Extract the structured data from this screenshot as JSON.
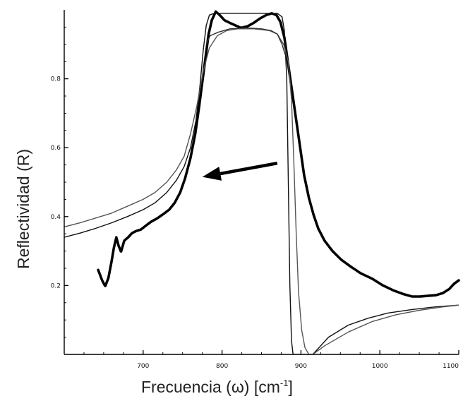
{
  "chart_data": {
    "type": "line",
    "xlabel": "Frecuencia (ω) [cm",
    "xlabel_sup": "-1",
    "xlabel_end": "]",
    "ylabel": "Reflectividad (R)",
    "xlim": [
      600,
      1100
    ],
    "ylim": [
      0,
      1
    ],
    "x_ticks": [
      700,
      800,
      900,
      1000,
      1100
    ],
    "x_tick_labels": [
      "700",
      "800",
      "900",
      "1000",
      "1100"
    ],
    "y_ticks": [
      0.2,
      0.4,
      0.6,
      0.8
    ],
    "y_tick_labels": [
      "0.2",
      "0.4",
      "0.6",
      "0.8"
    ],
    "grid": false,
    "legend": "none",
    "annotations": [
      {
        "type": "arrow",
        "from": {
          "x": 870,
          "y": 0.555
        },
        "to": {
          "x": 775,
          "y": 0.515
        }
      }
    ],
    "series": [
      {
        "style": "thick-dotted",
        "color": "#000000",
        "points": [
          [
            643,
            0.245
          ],
          [
            648,
            0.215
          ],
          [
            652,
            0.198
          ],
          [
            656,
            0.222
          ],
          [
            660,
            0.27
          ],
          [
            663,
            0.31
          ],
          [
            666,
            0.34
          ],
          [
            669,
            0.315
          ],
          [
            672,
            0.298
          ],
          [
            676,
            0.33
          ],
          [
            681,
            0.34
          ],
          [
            686,
            0.352
          ],
          [
            691,
            0.358
          ],
          [
            697,
            0.362
          ],
          [
            703,
            0.373
          ],
          [
            710,
            0.385
          ],
          [
            718,
            0.395
          ],
          [
            726,
            0.408
          ],
          [
            733,
            0.42
          ],
          [
            740,
            0.44
          ],
          [
            747,
            0.47
          ],
          [
            753,
            0.51
          ],
          [
            760,
            0.57
          ],
          [
            766,
            0.64
          ],
          [
            771,
            0.72
          ],
          [
            775,
            0.79
          ],
          [
            779,
            0.86
          ],
          [
            783,
            0.93
          ],
          [
            787,
            0.97
          ],
          [
            792,
            0.995
          ],
          [
            797,
            0.985
          ],
          [
            803,
            0.97
          ],
          [
            810,
            0.962
          ],
          [
            817,
            0.955
          ],
          [
            824,
            0.948
          ],
          [
            832,
            0.952
          ],
          [
            840,
            0.962
          ],
          [
            848,
            0.975
          ],
          [
            856,
            0.985
          ],
          [
            863,
            0.99
          ],
          [
            869,
            0.985
          ],
          [
            874,
            0.965
          ],
          [
            879,
            0.92
          ],
          [
            884,
            0.84
          ],
          [
            889,
            0.76
          ],
          [
            894,
            0.68
          ],
          [
            899,
            0.6
          ],
          [
            904,
            0.52
          ],
          [
            910,
            0.455
          ],
          [
            916,
            0.405
          ],
          [
            922,
            0.365
          ],
          [
            930,
            0.33
          ],
          [
            940,
            0.3
          ],
          [
            951,
            0.275
          ],
          [
            963,
            0.255
          ],
          [
            976,
            0.235
          ],
          [
            990,
            0.22
          ],
          [
            1004,
            0.2
          ],
          [
            1018,
            0.185
          ],
          [
            1030,
            0.175
          ],
          [
            1041,
            0.168
          ],
          [
            1051,
            0.168
          ],
          [
            1061,
            0.17
          ],
          [
            1071,
            0.172
          ],
          [
            1080,
            0.178
          ],
          [
            1088,
            0.19
          ],
          [
            1094,
            0.205
          ],
          [
            1100,
            0.215
          ]
        ]
      },
      {
        "style": "solid",
        "color": "#111111",
        "points": [
          [
            600,
            0.34
          ],
          [
            620,
            0.352
          ],
          [
            640,
            0.366
          ],
          [
            660,
            0.382
          ],
          [
            680,
            0.4
          ],
          [
            700,
            0.42
          ],
          [
            715,
            0.44
          ],
          [
            730,
            0.47
          ],
          [
            742,
            0.505
          ],
          [
            752,
            0.545
          ],
          [
            760,
            0.6
          ],
          [
            767,
            0.68
          ],
          [
            772,
            0.78
          ],
          [
            776,
            0.88
          ],
          [
            780,
            0.955
          ],
          [
            784,
            0.985
          ],
          [
            790,
            0.99
          ],
          [
            800,
            0.99
          ],
          [
            820,
            0.99
          ],
          [
            840,
            0.99
          ],
          [
            860,
            0.99
          ],
          [
            870,
            0.99
          ],
          [
            876,
            0.98
          ],
          [
            879,
            0.94
          ],
          [
            882,
            0.8
          ],
          [
            884,
            0.5
          ],
          [
            886,
            0.2
          ],
          [
            888,
            0.04
          ],
          [
            890,
            0.0
          ],
          [
            905,
            0.0
          ],
          [
            915,
            0.0
          ],
          [
            935,
            0.05
          ],
          [
            960,
            0.085
          ],
          [
            985,
            0.105
          ],
          [
            1010,
            0.12
          ],
          [
            1040,
            0.13
          ],
          [
            1070,
            0.138
          ],
          [
            1100,
            0.143
          ]
        ]
      },
      {
        "style": "solid",
        "color": "#555555",
        "points": [
          [
            600,
            0.37
          ],
          [
            620,
            0.382
          ],
          [
            640,
            0.396
          ],
          [
            660,
            0.41
          ],
          [
            680,
            0.43
          ],
          [
            700,
            0.45
          ],
          [
            715,
            0.47
          ],
          [
            730,
            0.5
          ],
          [
            742,
            0.535
          ],
          [
            752,
            0.575
          ],
          [
            760,
            0.64
          ],
          [
            768,
            0.72
          ],
          [
            776,
            0.82
          ],
          [
            784,
            0.89
          ],
          [
            794,
            0.925
          ],
          [
            806,
            0.94
          ],
          [
            820,
            0.945
          ],
          [
            840,
            0.945
          ],
          [
            860,
            0.94
          ],
          [
            870,
            0.93
          ],
          [
            878,
            0.9
          ],
          [
            884,
            0.85
          ],
          [
            888,
            0.74
          ],
          [
            891,
            0.56
          ],
          [
            894,
            0.35
          ],
          [
            897,
            0.18
          ],
          [
            901,
            0.07
          ],
          [
            905,
            0.02
          ],
          [
            910,
            0.0
          ],
          [
            915,
            0.0
          ],
          [
            930,
            0.025
          ],
          [
            960,
            0.065
          ],
          [
            990,
            0.095
          ],
          [
            1020,
            0.115
          ],
          [
            1050,
            0.128
          ],
          [
            1080,
            0.138
          ],
          [
            1100,
            0.143
          ]
        ]
      },
      {
        "style": "solid",
        "color": "#333333",
        "points": [
          [
            780,
            0.9
          ],
          [
            785,
            0.925
          ],
          [
            795,
            0.935
          ],
          [
            810,
            0.945
          ],
          [
            830,
            0.948
          ],
          [
            850,
            0.945
          ],
          [
            862,
            0.94
          ],
          [
            870,
            0.93
          ],
          [
            876,
            0.9
          ],
          [
            880,
            0.87
          ]
        ]
      }
    ]
  }
}
